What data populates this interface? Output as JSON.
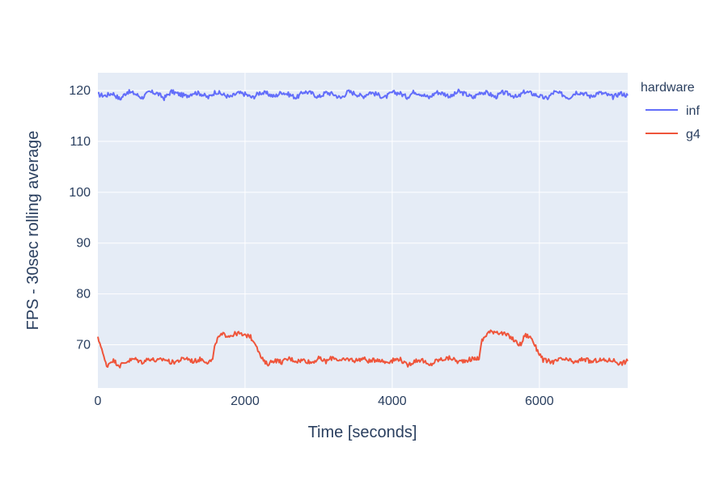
{
  "chart_data": {
    "type": "line",
    "xlabel": "Time [seconds]",
    "ylabel": "FPS - 30sec rolling average",
    "xlim": [
      0,
      7200
    ],
    "ylim": [
      61.5,
      123.5
    ],
    "x_ticks": [
      0,
      2000,
      4000,
      6000
    ],
    "y_ticks": [
      70,
      80,
      90,
      100,
      110,
      120
    ],
    "grid": true,
    "background_color": "#e5ecf6",
    "legend": {
      "title": "hardware",
      "position": "top-right-outside"
    },
    "series": [
      {
        "name": "inf",
        "color": "#636efa",
        "x": [
          0,
          100,
          200,
          300,
          400,
          500,
          600,
          700,
          800,
          900,
          1000,
          1100,
          1200,
          1300,
          1400,
          1500,
          1600,
          1700,
          1800,
          1900,
          2000,
          2100,
          2200,
          2300,
          2400,
          2500,
          2600,
          2700,
          2800,
          2900,
          3000,
          3100,
          3200,
          3300,
          3400,
          3500,
          3600,
          3700,
          3800,
          3900,
          4000,
          4100,
          4200,
          4300,
          4400,
          4500,
          4600,
          4700,
          4800,
          4900,
          5000,
          5100,
          5200,
          5300,
          5400,
          5500,
          5600,
          5700,
          5800,
          5900,
          6000,
          6100,
          6200,
          6300,
          6400,
          6500,
          6600,
          6700,
          6800,
          6900,
          7000,
          7100,
          7200
        ],
        "y": [
          119.2,
          119.0,
          119.5,
          118.3,
          119.8,
          119.4,
          118.6,
          119.7,
          119.5,
          118.5,
          119.8,
          119.3,
          118.9,
          119.6,
          119.4,
          118.6,
          119.8,
          119.2,
          118.7,
          119.5,
          119.3,
          118.6,
          119.6,
          119.4,
          118.8,
          119.7,
          119.2,
          118.6,
          119.8,
          119.5,
          118.7,
          119.6,
          119.3,
          118.5,
          119.8,
          119.4,
          118.8,
          119.7,
          119.2,
          118.6,
          119.6,
          119.5,
          118.7,
          119.8,
          119.3,
          118.6,
          119.7,
          119.4,
          118.8,
          119.8,
          119.3,
          118.6,
          119.7,
          119.5,
          118.7,
          119.6,
          119.3,
          118.6,
          119.8,
          119.4,
          118.9,
          118.4,
          119.7,
          119.3,
          118.6,
          119.7,
          119.5,
          118.8,
          119.6,
          119.3,
          118.7,
          119.5,
          119.0
        ]
      },
      {
        "name": "g4",
        "color": "#ef553b",
        "x": [
          0,
          40,
          80,
          120,
          160,
          200,
          300,
          400,
          500,
          600,
          700,
          800,
          900,
          1000,
          1100,
          1200,
          1300,
          1400,
          1500,
          1560,
          1600,
          1650,
          1700,
          1800,
          1900,
          2000,
          2050,
          2100,
          2150,
          2200,
          2250,
          2300,
          2400,
          2500,
          2600,
          2700,
          2800,
          2900,
          3000,
          3100,
          3200,
          3300,
          3400,
          3500,
          3600,
          3700,
          3800,
          3900,
          4000,
          4100,
          4200,
          4300,
          4400,
          4500,
          4600,
          4700,
          4800,
          4900,
          5000,
          5100,
          5180,
          5220,
          5300,
          5400,
          5500,
          5600,
          5700,
          5750,
          5800,
          5850,
          5900,
          5950,
          6000,
          6050,
          6100,
          6200,
          6300,
          6400,
          6500,
          6600,
          6700,
          6800,
          6900,
          7000,
          7100,
          7200
        ],
        "y": [
          71.2,
          70.0,
          67.5,
          65.8,
          66.5,
          67.0,
          65.9,
          66.8,
          67.2,
          66.6,
          67.3,
          66.8,
          67.2,
          66.5,
          66.9,
          67.4,
          66.7,
          67.2,
          66.6,
          67.0,
          70.5,
          71.6,
          72.0,
          71.8,
          72.3,
          71.7,
          72.0,
          71.0,
          70.2,
          68.0,
          66.8,
          66.2,
          67.0,
          66.6,
          67.3,
          66.8,
          67.0,
          66.5,
          67.3,
          66.7,
          67.6,
          66.8,
          67.2,
          66.9,
          67.3,
          66.7,
          67.2,
          66.6,
          66.9,
          67.3,
          65.9,
          66.8,
          67.1,
          65.8,
          66.9,
          67.2,
          67.4,
          66.6,
          67.0,
          67.2,
          67.4,
          70.8,
          72.4,
          72.7,
          72.2,
          71.6,
          70.3,
          70.0,
          71.9,
          71.7,
          71.2,
          69.5,
          68.3,
          67.0,
          66.8,
          66.6,
          67.2,
          66.9,
          66.5,
          67.3,
          66.6,
          67.0,
          66.9,
          67.0,
          66.3,
          66.8
        ]
      }
    ]
  }
}
